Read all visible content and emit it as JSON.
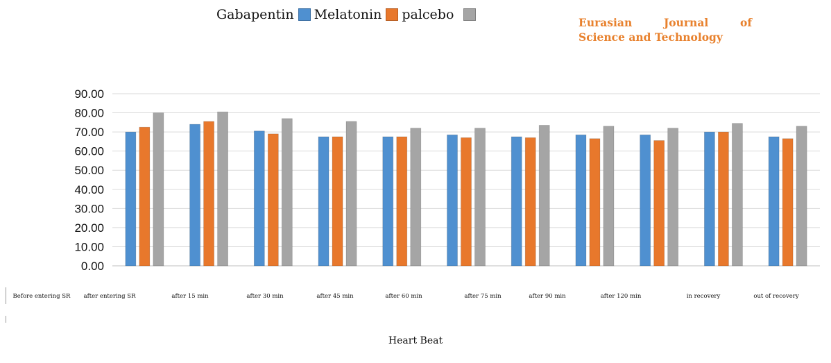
{
  "legend": {
    "items": [
      {
        "text": "Gabapentin",
        "color": "#ffffff"
      },
      {
        "text": "Melatonin",
        "color": "#4f90d0"
      },
      {
        "text": "palcebo",
        "color": "#e8782c"
      },
      {
        "text": "",
        "color": "#a5a5a5"
      }
    ]
  },
  "journal": {
    "line1_words": [
      "Eurasian",
      "Journal",
      "of"
    ],
    "line2": "Science and Technology",
    "color": "#e8812d"
  },
  "caption": "Heart Beat",
  "chart_data": {
    "type": "bar",
    "title": "",
    "xlabel": "Heart Beat",
    "ylabel": "",
    "ylim": [
      0,
      90
    ],
    "yticks": [
      "0.00",
      "10.00",
      "20.00",
      "30.00",
      "40.00",
      "50.00",
      "60.00",
      "70.00",
      "80.00",
      "90.00"
    ],
    "grid": true,
    "legend_position": "top",
    "categories": [
      "Before entering SR",
      "after entering SR",
      "after 15 min",
      "after 30 min",
      "after 45 min",
      "after 60 min",
      "after 75 min",
      "after 90 min",
      "after 120 min",
      "in recovery",
      "out of recovery"
    ],
    "series": [
      {
        "color": "#4f90d0",
        "values": [
          70,
          74,
          70.5,
          67.5,
          67.5,
          68.5,
          67.5,
          68.5,
          68.5,
          70,
          67.5
        ]
      },
      {
        "color": "#e8782c",
        "values": [
          72.5,
          75.5,
          69,
          67.5,
          67.5,
          67,
          67,
          66.5,
          65.5,
          70,
          66.5
        ]
      },
      {
        "color": "#a5a5a5",
        "values": [
          80,
          80.5,
          77,
          75.5,
          72,
          72,
          73.5,
          73,
          72,
          74.5,
          73
        ]
      }
    ]
  }
}
